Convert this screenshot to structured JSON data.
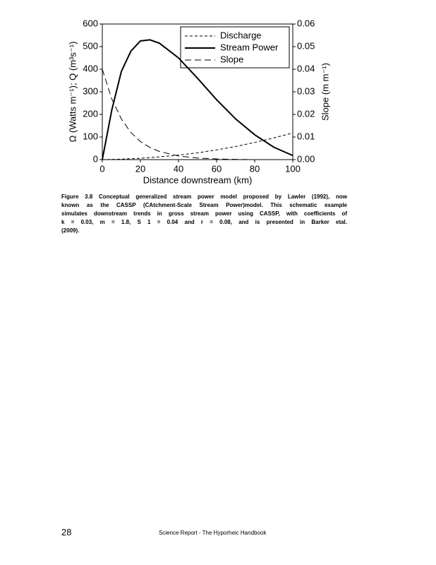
{
  "chart_data": {
    "type": "line",
    "xlabel": "Distance downstream (km)",
    "ylabel": "Ω (Watts m⁻¹); Q (m³s⁻¹)",
    "y2label": "Slope (m m⁻¹)",
    "x": [
      0,
      5,
      10,
      15,
      20,
      25,
      30,
      40,
      50,
      60,
      70,
      80,
      90,
      100
    ],
    "series": [
      {
        "name": "Discharge",
        "color": "#000000",
        "dash": "4,3",
        "values": [
          0,
          1,
          2,
          4,
          6,
          9,
          12,
          20,
          30,
          43,
          58,
          76,
          96,
          118
        ]
      },
      {
        "name": "Stream Power",
        "color": "#000000",
        "dash": "none",
        "values": [
          0,
          220,
          390,
          480,
          525,
          530,
          515,
          450,
          360,
          265,
          180,
          110,
          55,
          18
        ]
      },
      {
        "name": "Slope",
        "color": "#000000",
        "dash": "9,5",
        "axis": "y2",
        "values": [
          0.04,
          0.0268,
          0.018,
          0.012,
          0.008,
          0.0054,
          0.0036,
          0.0016,
          0.0007,
          0.0003,
          0.0001,
          0,
          0,
          0
        ]
      }
    ],
    "xlim": [
      0,
      100
    ],
    "xticks": [
      0,
      20,
      40,
      60,
      80,
      100
    ],
    "ylim": [
      0,
      600
    ],
    "yticks": [
      0,
      100,
      200,
      300,
      400,
      500,
      600
    ],
    "y2lim": [
      0,
      0.06
    ],
    "y2ticks": [
      {
        "value": 0,
        "label": "0.00"
      },
      {
        "value": 0.01,
        "label": "0.01"
      },
      {
        "value": 0.02,
        "label": "0.02"
      },
      {
        "value": 0.03,
        "label": "0.03"
      },
      {
        "value": 0.04,
        "label": "0.04"
      },
      {
        "value": 0.05,
        "label": "0.05"
      },
      {
        "value": 0.06,
        "label": "0.06"
      }
    ],
    "legend": "upper right"
  },
  "caption": "Figure 3.8 Conceptual generalized stream power model proposed by Lawler (1992), now known as the CASSP (CAtchment-Scale Stream Power)model. This schematic example simulates downstream trends in gross stream power using CASSP, with coefficients of k = 0.03, m = 1.8, S 1 = 0.04 and r = 0.08, and is presented in Barker etal. (2009).",
  "footer": {
    "page": "28",
    "text": "Science Report - The Hyporheic Handbook"
  }
}
